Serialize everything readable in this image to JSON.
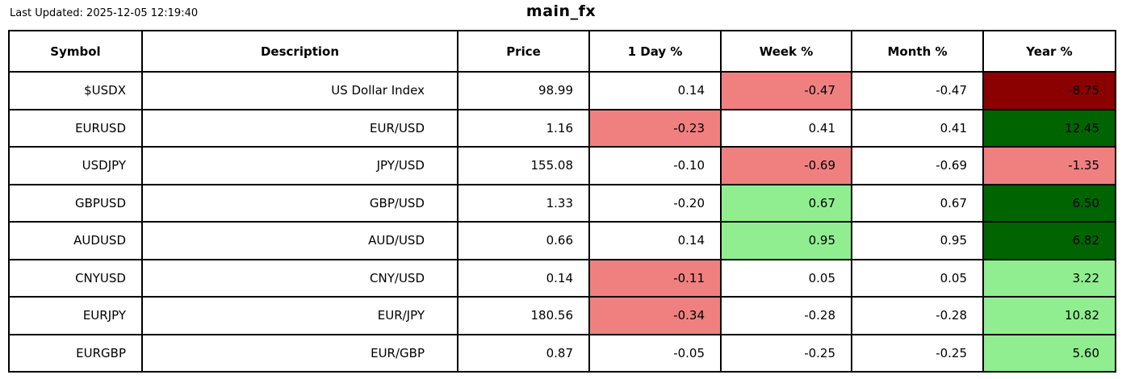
{
  "header": {
    "last_updated": "Last Updated: 2025-12-05 12:19:40",
    "title": "main_fx"
  },
  "colors": {
    "big_loss": "#8B0000",
    "loss": "#F08080",
    "gain": "#90EE90",
    "big_gain": "#006400",
    "neutral": "#FFFFFF",
    "border": "#000000",
    "text": "#000000"
  },
  "chart_data": {
    "type": "table",
    "title": "main_fx",
    "columns": [
      "Symbol",
      "Description",
      "Price",
      "1 Day %",
      "Week %",
      "Month %",
      "Year %"
    ],
    "rows": [
      [
        "$USDX",
        "US Dollar Index",
        98.99,
        0.14,
        -0.47,
        -0.47,
        -8.75
      ],
      [
        "EURUSD",
        "EUR/USD",
        1.16,
        -0.23,
        0.41,
        0.41,
        12.45
      ],
      [
        "USDJPY",
        "JPY/USD",
        155.08,
        -0.1,
        -0.69,
        -0.69,
        -1.35
      ],
      [
        "GBPUSD",
        "GBP/USD",
        1.33,
        -0.2,
        0.67,
        0.67,
        6.5
      ],
      [
        "AUDUSD",
        "AUD/USD",
        0.66,
        0.14,
        0.95,
        0.95,
        6.82
      ],
      [
        "CNYUSD",
        "CNY/USD",
        0.14,
        -0.11,
        0.05,
        0.05,
        3.22
      ],
      [
        "EURJPY",
        "EUR/JPY",
        180.56,
        -0.34,
        -0.28,
        -0.28,
        10.82
      ],
      [
        "EURGBP",
        "EUR/GBP",
        0.87,
        -0.05,
        -0.25,
        -0.25,
        5.6
      ]
    ],
    "legend_position": "none",
    "grid": "full-cell-borders"
  },
  "table": {
    "columns": [
      "Symbol",
      "Description",
      "Price",
      "1 Day %",
      "Week %",
      "Month %",
      "Year %"
    ],
    "rows": [
      {
        "cells": [
          {
            "text": "$USDX"
          },
          {
            "text": "US Dollar Index"
          },
          {
            "text": "98.99"
          },
          {
            "text": "0.14"
          },
          {
            "text": "-0.47",
            "bg": "loss"
          },
          {
            "text": "-0.47"
          },
          {
            "text": "-8.75",
            "bg": "big_loss"
          }
        ]
      },
      {
        "cells": [
          {
            "text": "EURUSD"
          },
          {
            "text": "EUR/USD"
          },
          {
            "text": "1.16"
          },
          {
            "text": "-0.23",
            "bg": "loss"
          },
          {
            "text": "0.41"
          },
          {
            "text": "0.41"
          },
          {
            "text": "12.45",
            "bg": "big_gain"
          }
        ]
      },
      {
        "cells": [
          {
            "text": "USDJPY"
          },
          {
            "text": "JPY/USD"
          },
          {
            "text": "155.08"
          },
          {
            "text": "-0.10"
          },
          {
            "text": "-0.69",
            "bg": "loss"
          },
          {
            "text": "-0.69"
          },
          {
            "text": "-1.35",
            "bg": "loss"
          }
        ]
      },
      {
        "cells": [
          {
            "text": "GBPUSD"
          },
          {
            "text": "GBP/USD"
          },
          {
            "text": "1.33"
          },
          {
            "text": "-0.20"
          },
          {
            "text": "0.67",
            "bg": "gain"
          },
          {
            "text": "0.67"
          },
          {
            "text": "6.50",
            "bg": "big_gain"
          }
        ]
      },
      {
        "cells": [
          {
            "text": "AUDUSD"
          },
          {
            "text": "AUD/USD"
          },
          {
            "text": "0.66"
          },
          {
            "text": "0.14"
          },
          {
            "text": "0.95",
            "bg": "gain"
          },
          {
            "text": "0.95"
          },
          {
            "text": "6.82",
            "bg": "big_gain"
          }
        ]
      },
      {
        "cells": [
          {
            "text": "CNYUSD"
          },
          {
            "text": "CNY/USD"
          },
          {
            "text": "0.14"
          },
          {
            "text": "-0.11",
            "bg": "loss"
          },
          {
            "text": "0.05"
          },
          {
            "text": "0.05"
          },
          {
            "text": "3.22",
            "bg": "gain"
          }
        ]
      },
      {
        "cells": [
          {
            "text": "EURJPY"
          },
          {
            "text": "EUR/JPY"
          },
          {
            "text": "180.56"
          },
          {
            "text": "-0.34",
            "bg": "loss"
          },
          {
            "text": "-0.28"
          },
          {
            "text": "-0.28"
          },
          {
            "text": "10.82",
            "bg": "gain"
          }
        ]
      },
      {
        "cells": [
          {
            "text": "EURGBP"
          },
          {
            "text": "EUR/GBP"
          },
          {
            "text": "0.87"
          },
          {
            "text": "-0.05"
          },
          {
            "text": "-0.25"
          },
          {
            "text": "-0.25"
          },
          {
            "text": "5.60",
            "bg": "gain"
          }
        ]
      }
    ]
  }
}
